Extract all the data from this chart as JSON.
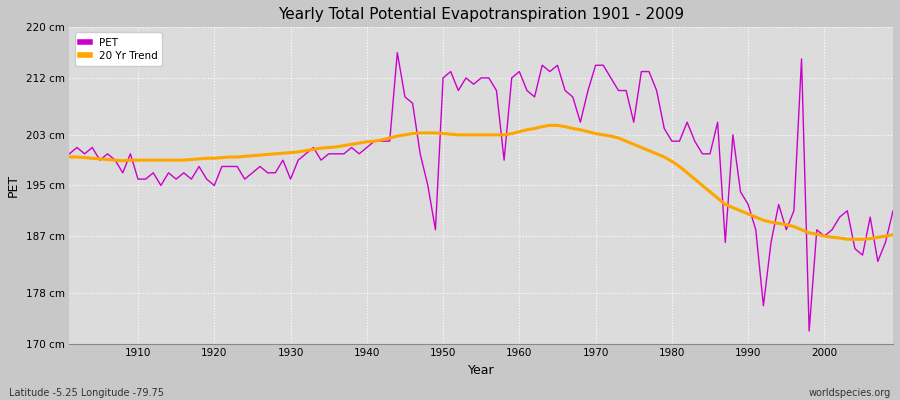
{
  "title": "Yearly Total Potential Evapotranspiration 1901 - 2009",
  "xlabel": "Year",
  "ylabel": "PET",
  "bottom_left": "Latitude -5.25 Longitude -79.75",
  "bottom_right": "worldspecies.org",
  "plot_bg_color": "#dcdcdc",
  "fig_bg_color": "#c8c8c8",
  "pet_color": "#cc00cc",
  "trend_color": "#ffa500",
  "ylim": [
    170,
    220
  ],
  "yticks": [
    170,
    178,
    187,
    195,
    203,
    212,
    220
  ],
  "ytick_labels": [
    "170 cm",
    "178 cm",
    "187 cm",
    "195 cm",
    "203 cm",
    "212 cm",
    "220 cm"
  ],
  "xlim": [
    1901,
    2009
  ],
  "xticks": [
    1910,
    1920,
    1930,
    1940,
    1950,
    1960,
    1970,
    1980,
    1990,
    2000
  ],
  "years": [
    1901,
    1902,
    1903,
    1904,
    1905,
    1906,
    1907,
    1908,
    1909,
    1910,
    1911,
    1912,
    1913,
    1914,
    1915,
    1916,
    1917,
    1918,
    1919,
    1920,
    1921,
    1922,
    1923,
    1924,
    1925,
    1926,
    1927,
    1928,
    1929,
    1930,
    1931,
    1932,
    1933,
    1934,
    1935,
    1936,
    1937,
    1938,
    1939,
    1940,
    1941,
    1942,
    1943,
    1944,
    1945,
    1946,
    1947,
    1948,
    1949,
    1950,
    1951,
    1952,
    1953,
    1954,
    1955,
    1956,
    1957,
    1958,
    1959,
    1960,
    1961,
    1962,
    1963,
    1964,
    1965,
    1966,
    1967,
    1968,
    1969,
    1970,
    1971,
    1972,
    1973,
    1974,
    1975,
    1976,
    1977,
    1978,
    1979,
    1980,
    1981,
    1982,
    1983,
    1984,
    1985,
    1986,
    1987,
    1988,
    1989,
    1990,
    1991,
    1992,
    1993,
    1994,
    1995,
    1996,
    1997,
    1998,
    1999,
    2000,
    2001,
    2002,
    2003,
    2004,
    2005,
    2006,
    2007,
    2008,
    2009
  ],
  "pet_values": [
    200,
    201,
    200,
    201,
    199,
    200,
    199,
    197,
    200,
    196,
    196,
    197,
    195,
    197,
    196,
    197,
    196,
    198,
    196,
    195,
    198,
    198,
    198,
    196,
    197,
    198,
    197,
    197,
    199,
    196,
    199,
    200,
    201,
    199,
    200,
    200,
    200,
    201,
    200,
    201,
    202,
    202,
    202,
    216,
    209,
    208,
    200,
    195,
    188,
    212,
    213,
    210,
    212,
    211,
    212,
    212,
    210,
    199,
    212,
    213,
    210,
    209,
    214,
    213,
    214,
    210,
    209,
    205,
    210,
    214,
    214,
    212,
    210,
    210,
    205,
    213,
    213,
    210,
    204,
    202,
    202,
    205,
    202,
    200,
    200,
    205,
    186,
    203,
    194,
    192,
    188,
    176,
    186,
    192,
    188,
    191,
    215,
    172,
    188,
    187,
    188,
    190,
    191,
    185,
    184,
    190,
    183,
    186,
    191
  ],
  "trend_values": [
    199.5,
    199.5,
    199.4,
    199.3,
    199.2,
    199.1,
    199.0,
    198.9,
    199.0,
    199.0,
    199.0,
    199.0,
    199.0,
    199.0,
    199.0,
    199.0,
    199.1,
    199.2,
    199.3,
    199.3,
    199.4,
    199.5,
    199.5,
    199.6,
    199.7,
    199.8,
    199.9,
    200.0,
    200.1,
    200.2,
    200.3,
    200.5,
    200.7,
    200.9,
    201.0,
    201.1,
    201.3,
    201.5,
    201.7,
    201.9,
    202.0,
    202.2,
    202.5,
    202.8,
    203.0,
    203.2,
    203.3,
    203.3,
    203.3,
    203.2,
    203.1,
    203.0,
    203.0,
    203.0,
    203.0,
    203.0,
    203.0,
    203.0,
    203.2,
    203.5,
    203.8,
    204.0,
    204.3,
    204.5,
    204.5,
    204.3,
    204.0,
    203.8,
    203.5,
    203.2,
    203.0,
    202.8,
    202.5,
    202.0,
    201.5,
    201.0,
    200.5,
    200.0,
    199.5,
    198.8,
    198.0,
    197.0,
    196.0,
    195.0,
    194.0,
    193.0,
    192.0,
    191.5,
    191.0,
    190.5,
    190.0,
    189.5,
    189.2,
    189.0,
    188.8,
    188.5,
    188.0,
    187.5,
    187.3,
    187.0,
    186.8,
    186.7,
    186.5,
    186.5,
    186.5,
    186.6,
    186.8,
    187.0,
    187.2
  ]
}
